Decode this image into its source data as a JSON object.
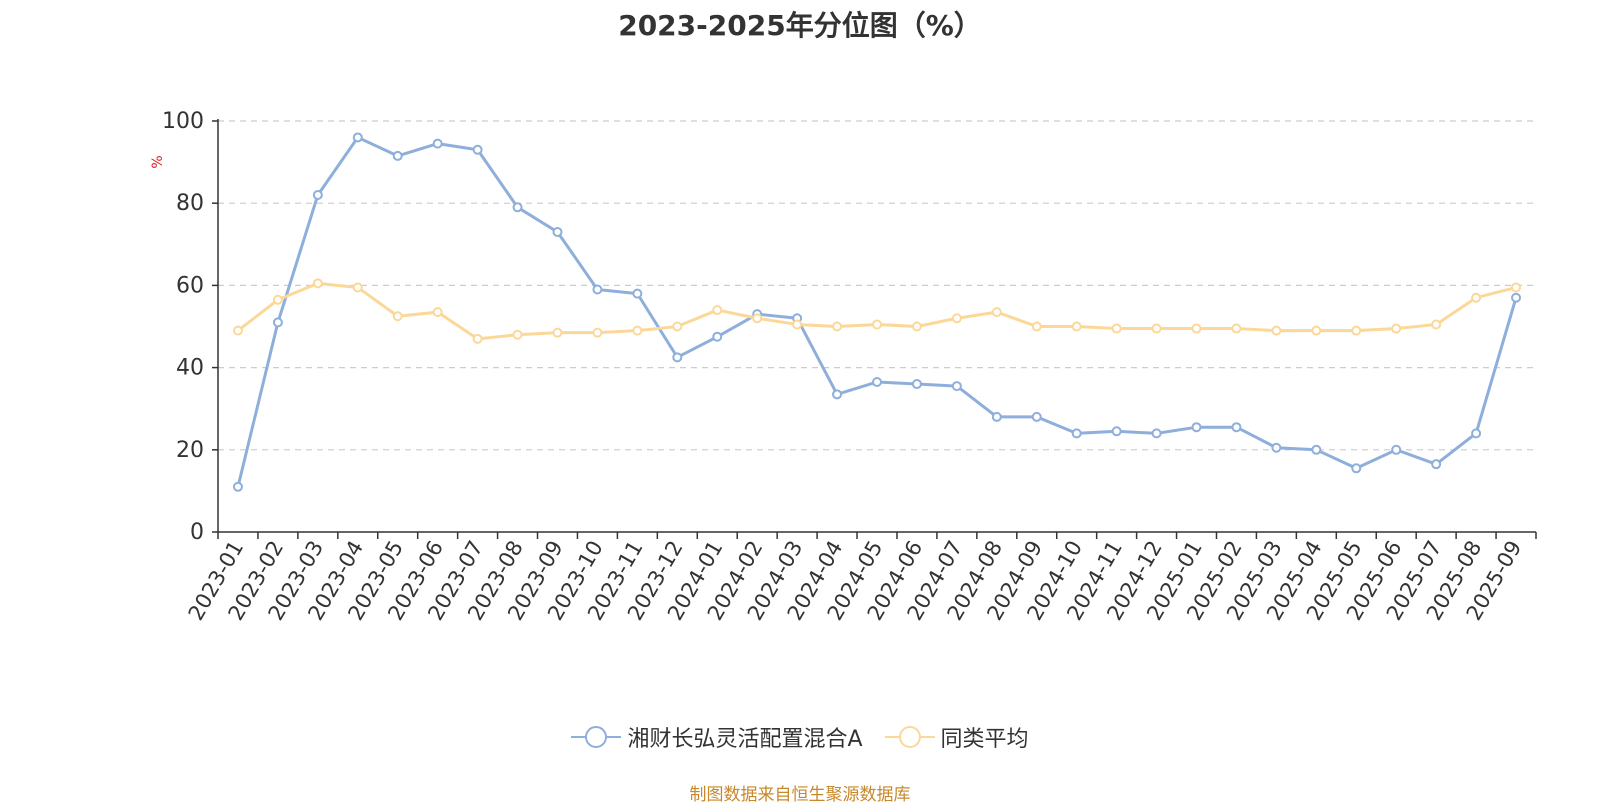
{
  "chart_data": {
    "type": "line",
    "title": "2023-2025年分位图（%）",
    "ylabel": "%",
    "xlabel": "",
    "ylim": [
      0,
      100
    ],
    "yticks": [
      0,
      20,
      40,
      60,
      80,
      100
    ],
    "grid": true,
    "legend_position": "bottom",
    "categories": [
      "2023-01",
      "2023-02",
      "2023-03",
      "2023-04",
      "2023-05",
      "2023-06",
      "2023-07",
      "2023-08",
      "2023-09",
      "2023-10",
      "2023-11",
      "2023-12",
      "2024-01",
      "2024-02",
      "2024-03",
      "2024-04",
      "2024-05",
      "2024-06",
      "2024-07",
      "2024-08",
      "2024-09",
      "2024-10",
      "2024-11",
      "2024-12",
      "2025-01",
      "2025-02",
      "2025-03",
      "2025-04",
      "2025-05",
      "2025-06",
      "2025-07",
      "2025-08",
      "2025-09"
    ],
    "series": [
      {
        "name": "湘财长弘灵活配置混合A",
        "color": "#8eaedb",
        "values": [
          11,
          51,
          82,
          96,
          91.5,
          94.5,
          93,
          79,
          73,
          59,
          58,
          42.5,
          47.5,
          53,
          52,
          33.5,
          36.5,
          36,
          35.5,
          28,
          28,
          24,
          24.5,
          24,
          25.5,
          25.5,
          20.5,
          20,
          15.5,
          20,
          16.5,
          24,
          57
        ]
      },
      {
        "name": "同类平均",
        "color": "#fcd898",
        "values": [
          49,
          56.5,
          60.5,
          59.5,
          52.5,
          53.5,
          47,
          48,
          48.5,
          48.5,
          49,
          50,
          54,
          52,
          50.5,
          50,
          50.5,
          50,
          52,
          53.5,
          50,
          50,
          49.5,
          49.5,
          49.5,
          49.5,
          49,
          49,
          49,
          49.5,
          50.5,
          57,
          59.5
        ]
      }
    ]
  },
  "footer": {
    "source": "制图数据来自恒生聚源数据库"
  }
}
